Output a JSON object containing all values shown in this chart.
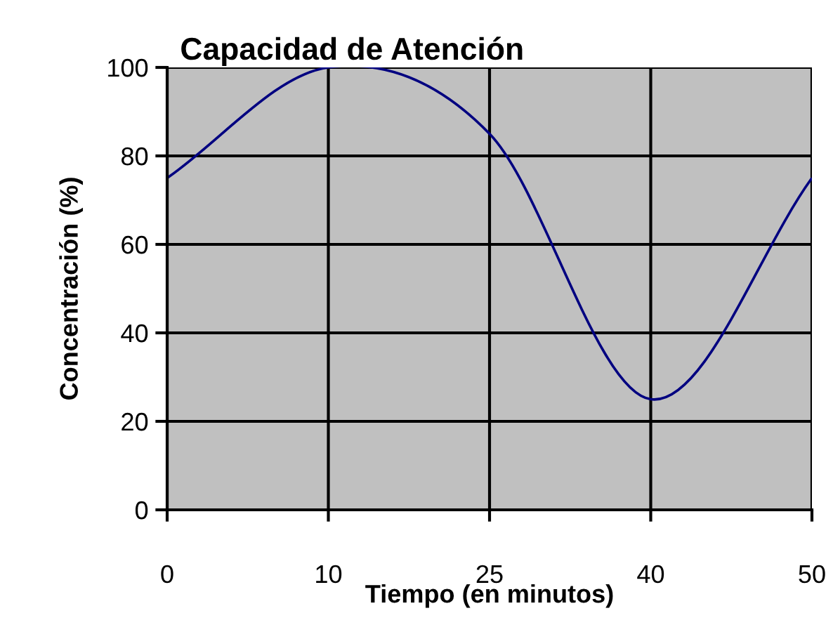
{
  "chart_data": {
    "type": "line",
    "title": "Capacidad de Atención",
    "xlabel": "Tiempo (en minutos)",
    "ylabel": "Concentración (%)",
    "categories": [
      "0",
      "10",
      "25",
      "40",
      "50"
    ],
    "series": [
      {
        "color": "#000080",
        "values": [
          75,
          100,
          85,
          25,
          75
        ]
      }
    ],
    "ylim": [
      0,
      100
    ],
    "yticks": [
      0,
      20,
      40,
      60,
      80,
      100
    ],
    "grid": true,
    "marker": "none",
    "line_style": "solid"
  }
}
